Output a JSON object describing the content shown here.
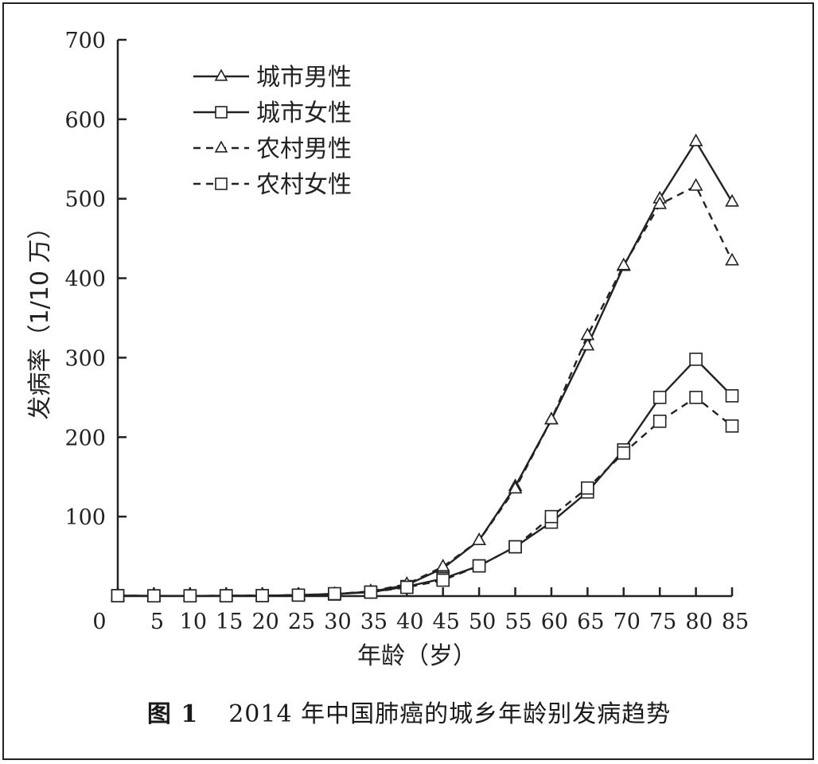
{
  "caption": {
    "figure_label": "图 1",
    "text": "2014 年中国肺癌的城乡年龄别发病趋势"
  },
  "chart_data": {
    "type": "line",
    "title": "",
    "xlabel": "年龄（岁）",
    "ylabel": "发病率（1/10 万）",
    "x": [
      0,
      5,
      10,
      15,
      20,
      25,
      30,
      35,
      40,
      45,
      50,
      55,
      60,
      65,
      70,
      75,
      80,
      85
    ],
    "x_tick_labels": [
      "0",
      "5",
      "10",
      "15",
      "20",
      "25",
      "30",
      "35",
      "40",
      "45",
      "50",
      "55",
      "60",
      "65",
      "70",
      "75",
      "80",
      "85"
    ],
    "xlim": [
      0,
      85
    ],
    "ylim": [
      0,
      700
    ],
    "y_ticks": [
      100,
      200,
      300,
      400,
      500,
      600,
      700
    ],
    "grid": false,
    "legend_position": "top-left",
    "series": [
      {
        "name": "城市男性",
        "line_style": "solid",
        "marker": "triangle",
        "values": [
          0.5,
          0.3,
          0.3,
          0.4,
          0.6,
          1.2,
          2.5,
          5.5,
          14,
          35,
          70,
          138,
          222,
          315,
          415,
          500,
          572,
          496
        ]
      },
      {
        "name": "城市女性",
        "line_style": "solid",
        "marker": "square",
        "values": [
          0.5,
          0.3,
          0.3,
          0.4,
          0.6,
          1.2,
          2.5,
          5,
          12,
          22,
          38,
          62,
          93,
          131,
          184,
          250,
          298,
          252
        ]
      },
      {
        "name": "农村男性",
        "line_style": "dashed",
        "marker": "triangle",
        "values": [
          0.5,
          0.3,
          0.3,
          0.4,
          0.6,
          1.2,
          2.5,
          6,
          15,
          37,
          70,
          135,
          222,
          328,
          416,
          493,
          516,
          422
        ]
      },
      {
        "name": "农村女性",
        "line_style": "dashed",
        "marker": "square",
        "values": [
          0.5,
          0.3,
          0.3,
          0.4,
          0.6,
          1.2,
          3,
          5,
          11,
          20,
          38,
          62,
          100,
          136,
          180,
          220,
          250,
          214
        ]
      }
    ]
  }
}
